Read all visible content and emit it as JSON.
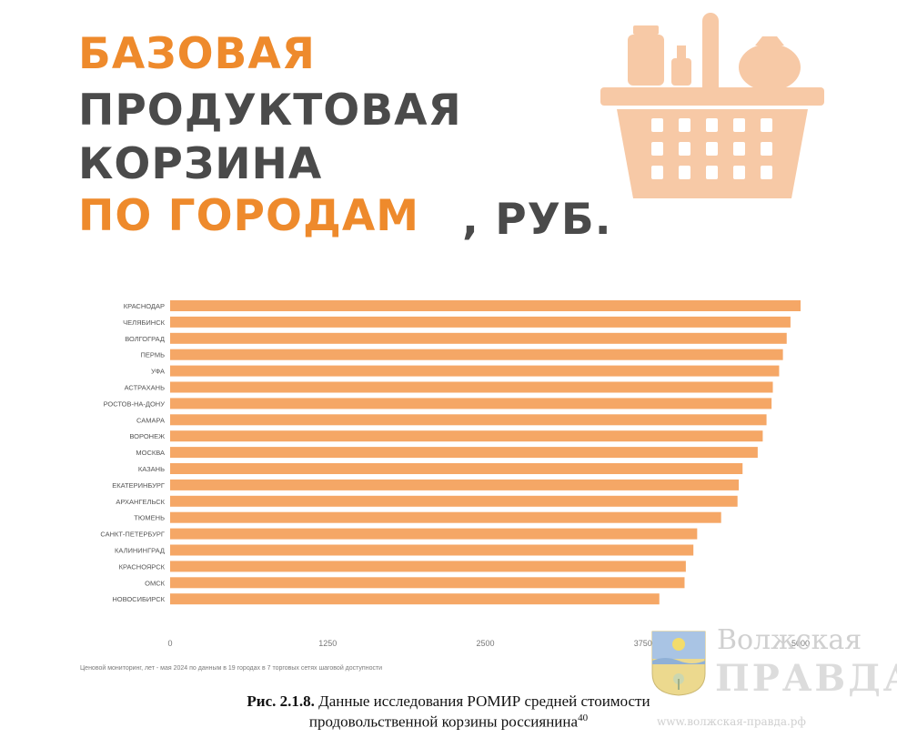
{
  "title": {
    "line1": "БАЗОВАЯ",
    "line2": "ПРОДУКТОВАЯ",
    "line3": "КОРЗИНА",
    "line4": "ПО ГОРОДАМ",
    "line4_suffix": ", РУБ."
  },
  "basket_icon": "grocery-basket-icon",
  "colors": {
    "accent": "#ee8a2c",
    "bar": "#f5a766",
    "dark": "#4a4a4a",
    "basket": "#f7c9a6"
  },
  "chart_data": {
    "type": "bar",
    "orientation": "horizontal",
    "categories": [
      "КРАСНОДАР",
      "ЧЕЛЯБИНСК",
      "ВОЛГОГРАД",
      "ПЕРМЬ",
      "УФА",
      "АСТРАХАНЬ",
      "РОСТОВ-НА-ДОНУ",
      "САМАРА",
      "ВОРОНЕЖ",
      "МОСКВА",
      "КАЗАНЬ",
      "ЕКАТЕРИНБУРГ",
      "АРХАНГЕЛЬСК",
      "ТЮМЕНЬ",
      "САНКТ-ПЕТЕРБУРГ",
      "КАЛИНИНГРАД",
      "КРАСНОЯРСК",
      "ОМСК",
      "НОВОСИБИРСК"
    ],
    "values": [
      5000,
      4920,
      4890,
      4860,
      4830,
      4780,
      4770,
      4730,
      4700,
      4660,
      4540,
      4510,
      4500,
      4370,
      4180,
      4150,
      4090,
      4080,
      3880
    ],
    "xticks": [
      "0",
      "1250",
      "2500",
      "3750",
      "5000"
    ],
    "xlim": [
      0,
      5000
    ],
    "source": "Ценовой мониторинг, лет - мая 2024 по данным в 19 городах в 7 торговых сетях шаговой доступности"
  },
  "caption": {
    "fig_label": "Рис. 2.1.8.",
    "text1": " Данные исследования РОМИР средней стоимости",
    "text2": "продовольственной корзины россиянина",
    "footnote": "40"
  },
  "watermark": {
    "line1": "Волжская",
    "line2": "ПРАВДА",
    "url": "www.волжская-правда.рф",
    "emblem_icon": "city-coat-of-arms-icon"
  }
}
